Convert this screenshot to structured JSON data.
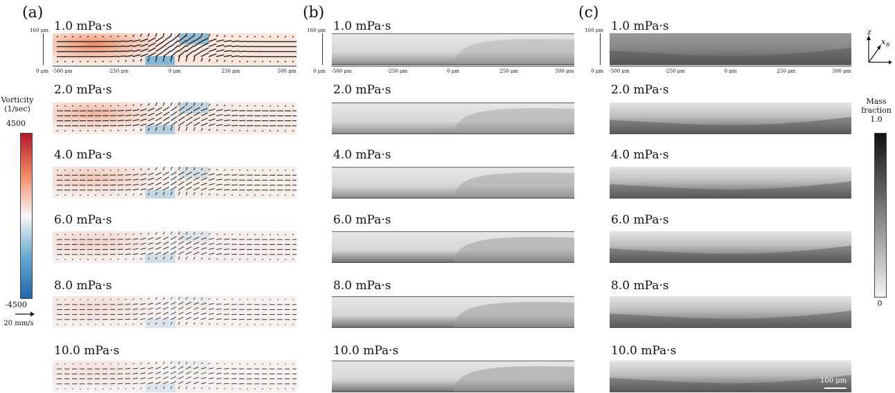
{
  "panels": [
    {
      "letter": "(a)",
      "kind": "vorticity"
    },
    {
      "letter": "(b)",
      "kind": "concentration-sim"
    },
    {
      "letter": "(c)",
      "kind": "concentration-exp"
    }
  ],
  "rows": [
    {
      "label": "1.0 mPa·s",
      "strength": 1.0
    },
    {
      "label": "2.0 mPa·s",
      "strength": 0.55
    },
    {
      "label": "4.0 mPa·s",
      "strength": 0.35
    },
    {
      "label": "6.0 mPa·s",
      "strength": 0.22
    },
    {
      "label": "8.0 mPa·s",
      "strength": 0.12
    },
    {
      "label": "10.0 mPa·s",
      "strength": 0.08
    }
  ],
  "axes": {
    "y_top": "160 μm",
    "y_bottom": "0 μm",
    "x_ticks": [
      "-500 μm",
      "-250 μm",
      "0 μm",
      "250 μm",
      "500 μm"
    ]
  },
  "vorticity_colorbar": {
    "title_line1": "Vorticity",
    "title_line2": "(1/sec)",
    "max": "4500",
    "min": "-4500",
    "colors": [
      "#b2182b",
      "#ef8a62",
      "#f7f7f7",
      "#67a9cf",
      "#2166ac"
    ]
  },
  "velocity_scale": {
    "label": "20 mm/s"
  },
  "mass_colorbar": {
    "title_line1": "Mass",
    "title_line2": "fraction",
    "max": "1.0",
    "min": "0"
  },
  "axis_glyph": {
    "z": "z",
    "x": "x",
    "sub": "R"
  },
  "scale_bar": {
    "label": "100 μm"
  }
}
